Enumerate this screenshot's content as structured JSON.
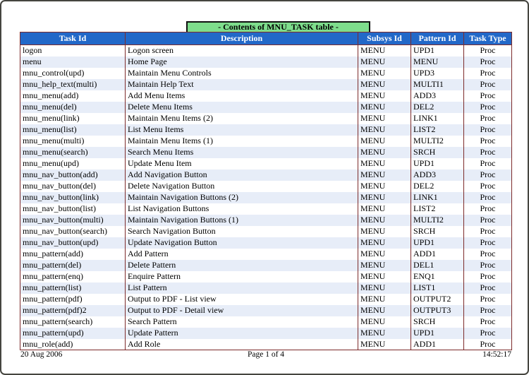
{
  "page": {
    "title": "- Contents of MNU_TASK table -",
    "footer": {
      "date": "20 Aug 2006",
      "page_label": "Page 1 of 4",
      "time": "14:52:17"
    }
  },
  "colors": {
    "title_bg": "#7EDD8C",
    "header_bg": "#2268C8",
    "header_text": "#FFFFFF",
    "table_border": "#7D2B2B",
    "row_alt_bg": "#E7EDF8"
  },
  "table": {
    "columns": [
      "Task Id",
      "Description",
      "Subsys Id",
      "Pattern Id",
      "Task Type"
    ],
    "rows": [
      [
        "logon",
        "Logon screen",
        "MENU",
        "UPD1",
        "Proc"
      ],
      [
        "menu",
        "Home Page",
        "MENU",
        "MENU",
        "Proc"
      ],
      [
        "mnu_control(upd)",
        "Maintain Menu Controls",
        "MENU",
        "UPD3",
        "Proc"
      ],
      [
        "mnu_help_text(multi)",
        "Maintain Help Text",
        "MENU",
        "MULTI1",
        "Proc"
      ],
      [
        "mnu_menu(add)",
        "Add Menu Items",
        "MENU",
        "ADD3",
        "Proc"
      ],
      [
        "mnu_menu(del)",
        "Delete Menu Items",
        "MENU",
        "DEL2",
        "Proc"
      ],
      [
        "mnu_menu(link)",
        "Maintain Menu Items (2)",
        "MENU",
        "LINK1",
        "Proc"
      ],
      [
        "mnu_menu(list)",
        "List Menu Items",
        "MENU",
        "LIST2",
        "Proc"
      ],
      [
        "mnu_menu(multi)",
        "Maintain Menu Items (1)",
        "MENU",
        "MULTI2",
        "Proc"
      ],
      [
        "mnu_menu(search)",
        "Search Menu Items",
        "MENU",
        "SRCH",
        "Proc"
      ],
      [
        "mnu_menu(upd)",
        "Update Menu Item",
        "MENU",
        "UPD1",
        "Proc"
      ],
      [
        "mnu_nav_button(add)",
        "Add Navigation Button",
        "MENU",
        "ADD3",
        "Proc"
      ],
      [
        "mnu_nav_button(del)",
        "Delete Navigation Button",
        "MENU",
        "DEL2",
        "Proc"
      ],
      [
        "mnu_nav_button(link)",
        "Maintain Navigation Buttons (2)",
        "MENU",
        "LINK1",
        "Proc"
      ],
      [
        "mnu_nav_button(list)",
        "List Navigation Buttons",
        "MENU",
        "LIST2",
        "Proc"
      ],
      [
        "mnu_nav_button(multi)",
        "Maintain Navigation Buttons (1)",
        "MENU",
        "MULTI2",
        "Proc"
      ],
      [
        "mnu_nav_button(search)",
        "Search Navigation Button",
        "MENU",
        "SRCH",
        "Proc"
      ],
      [
        "mnu_nav_button(upd)",
        "Update Navigation Button",
        "MENU",
        "UPD1",
        "Proc"
      ],
      [
        "mnu_pattern(add)",
        "Add Pattern",
        "MENU",
        "ADD1",
        "Proc"
      ],
      [
        "mnu_pattern(del)",
        "Delete Pattern",
        "MENU",
        "DEL1",
        "Proc"
      ],
      [
        "mnu_pattern(enq)",
        "Enquire Pattern",
        "MENU",
        "ENQ1",
        "Proc"
      ],
      [
        "mnu_pattern(list)",
        "List Pattern",
        "MENU",
        "LIST1",
        "Proc"
      ],
      [
        "mnu_pattern(pdf)",
        "Output to PDF - List view",
        "MENU",
        "OUTPUT2",
        "Proc"
      ],
      [
        "mnu_pattern(pdf)2",
        "Output to PDF - Detail view",
        "MENU",
        "OUTPUT3",
        "Proc"
      ],
      [
        "mnu_pattern(search)",
        "Search Pattern",
        "MENU",
        "SRCH",
        "Proc"
      ],
      [
        "mnu_pattern(upd)",
        "Update Pattern",
        "MENU",
        "UPD1",
        "Proc"
      ],
      [
        "mnu_role(add)",
        "Add Role",
        "MENU",
        "ADD1",
        "Proc"
      ]
    ]
  }
}
